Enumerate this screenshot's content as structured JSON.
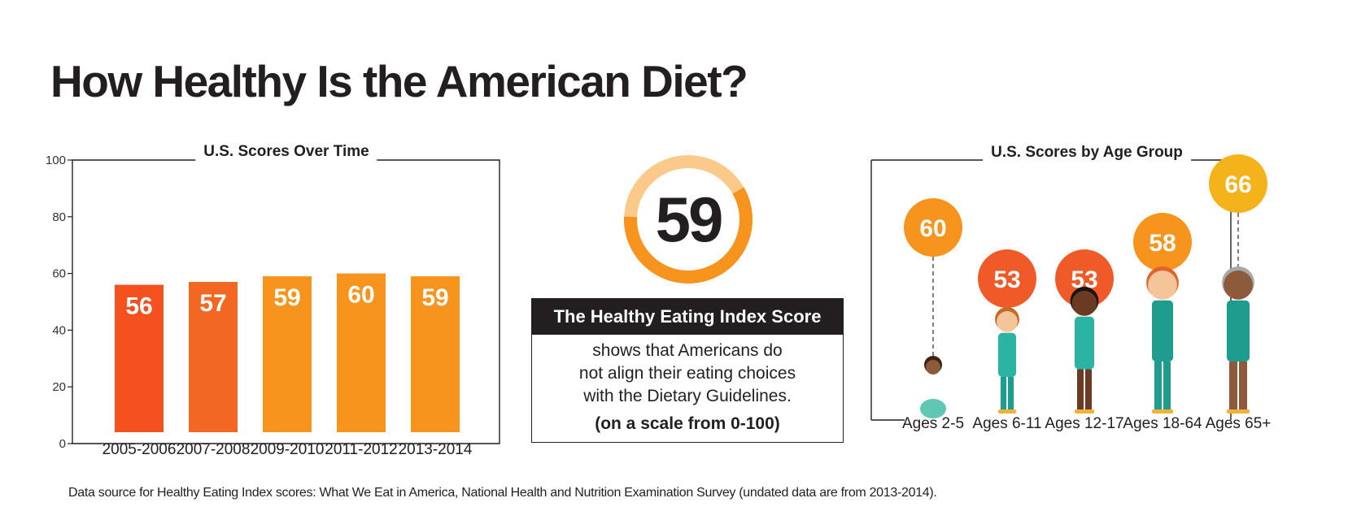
{
  "title": "How Healthy Is the American Diet?",
  "colors": {
    "bar_2005": "#f4511e",
    "bar_2007": "#f26722",
    "bar_other": "#f7941d",
    "ring_fill": "#f7941d",
    "ring_track": "#fbc98a",
    "circle_red": "#f05a28",
    "circle_orange": "#f7941d",
    "circle_yellow": "#f5b31b",
    "dark": "#231f20"
  },
  "chart_data": [
    {
      "type": "bar",
      "title": "U.S. Scores Over Time",
      "categories": [
        "2005-2006",
        "2007-2008",
        "2009-2010",
        "2011-2012",
        "2013-2014"
      ],
      "values": [
        56,
        57,
        59,
        60,
        59
      ],
      "ylim": [
        0,
        100
      ],
      "yticks": [
        0,
        20,
        40,
        60,
        80,
        100
      ],
      "data_labels": true
    },
    {
      "type": "bar",
      "title": "U.S. Scores by Age Group",
      "categories": [
        "Ages 2-5",
        "Ages 6-11",
        "Ages 12-17",
        "Ages 18-64",
        "Ages 65+"
      ],
      "values": [
        60,
        53,
        53,
        58,
        66
      ],
      "data_labels": true
    }
  ],
  "summary": {
    "score": "59",
    "score_value": 59,
    "scale_max": 100,
    "heading": "The Healthy Eating Index Score",
    "body_lines": [
      "shows that Americans do",
      "not align their eating choices",
      "with the Dietary Guidelines."
    ],
    "scale_note": "(on a scale from 0-100)"
  },
  "footer": "Data source for Healthy Eating Index scores: What We Eat in America, National Health and Nutrition Examination Survey (undated data are from 2013-2014)."
}
